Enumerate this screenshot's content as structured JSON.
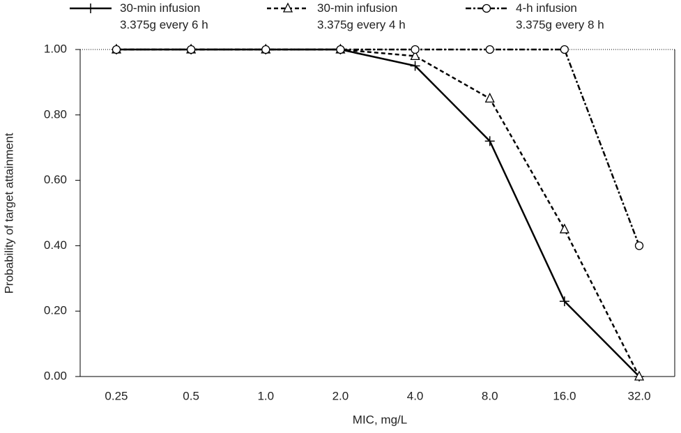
{
  "chart_data": {
    "type": "line",
    "x_label": "MIC, mg/L",
    "y_label": "Probability of target attainment",
    "categories": [
      "0.25",
      "0.5",
      "1.0",
      "2.0",
      "4.0",
      "8.0",
      "16.0",
      "32.0"
    ],
    "series": [
      {
        "name": "30-min infusion\n3.375g every 6 h",
        "color": "#000000",
        "dash": "solid",
        "marker": "plus",
        "values": [
          1,
          1,
          1,
          1,
          0.95,
          0.72,
          0.23,
          0
        ]
      },
      {
        "name": "30-min infusion\n3.375g every 4 h",
        "color": "#000000",
        "dash": "dashed",
        "marker": "triangle",
        "values": [
          1,
          1,
          1,
          1,
          0.98,
          0.85,
          0.45,
          0
        ]
      },
      {
        "name": "4-h infusion\n3.375g every 8 h",
        "color": "#000000",
        "dash": "dashdot",
        "marker": "circle",
        "values": [
          1,
          1,
          1,
          1,
          1,
          1,
          1,
          0.4
        ]
      }
    ],
    "ylim": [
      0,
      1
    ],
    "yticks": [
      {
        "value": 0,
        "label": "0.00"
      },
      {
        "value": 0.2,
        "label": "0.20"
      },
      {
        "value": 0.4,
        "label": "0.40"
      },
      {
        "value": 0.6,
        "label": "0.60"
      },
      {
        "value": 0.8,
        "label": "0.80"
      },
      {
        "value": 1,
        "label": "1.00"
      }
    ],
    "grid": false
  }
}
